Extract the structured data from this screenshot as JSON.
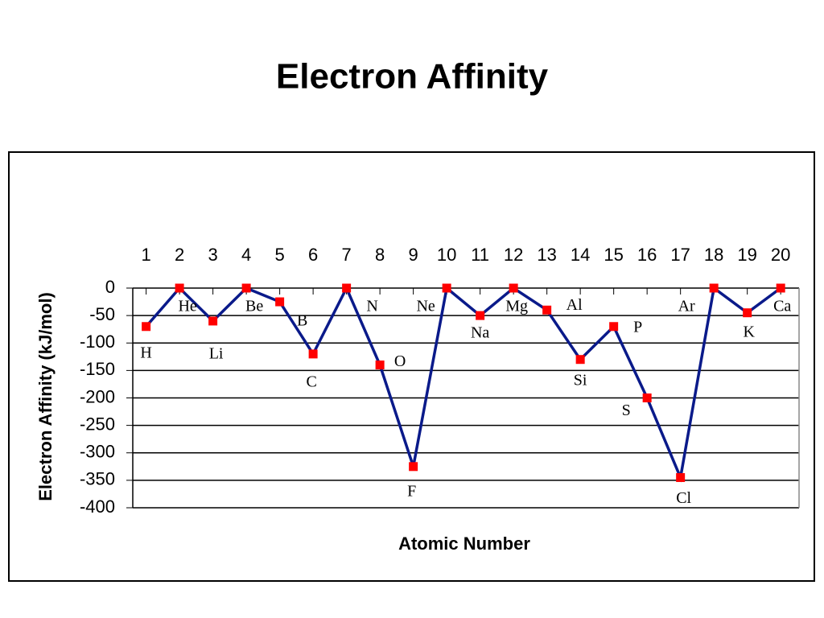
{
  "chart_data": {
    "type": "line",
    "title": "Electron Affinity",
    "x_label": "Atomic Number",
    "y_label": "Electron Affinity (kJ/mol)",
    "x": [
      1,
      2,
      3,
      4,
      5,
      6,
      7,
      8,
      9,
      10,
      11,
      12,
      13,
      14,
      15,
      16,
      17,
      18,
      19,
      20
    ],
    "point_labels": [
      "H",
      "He",
      "Li",
      "Be",
      "B",
      "C",
      "N",
      "O",
      "F",
      "Ne",
      "Na",
      "Mg",
      "Al",
      "Si",
      "P",
      "S",
      "Cl",
      "Ar",
      "K",
      "Ca"
    ],
    "series": [
      {
        "color": "#0a1a8a",
        "marker_color": "#ff0000",
        "values": [
          -70,
          0,
          -60,
          0,
          -25,
          -120,
          0,
          -140,
          -325,
          0,
          -50,
          0,
          -40,
          -130,
          -70,
          -200,
          -345,
          0,
          -45,
          0
        ]
      }
    ],
    "xlim": [
      0.6,
      20.55
    ],
    "ylim": [
      -400,
      0
    ],
    "xticks": [
      1,
      2,
      3,
      4,
      5,
      6,
      7,
      8,
      9,
      10,
      11,
      12,
      13,
      14,
      15,
      16,
      17,
      18,
      19,
      20
    ],
    "yticks": [
      0,
      -50,
      -100,
      -150,
      -200,
      -250,
      -300,
      -350,
      -400
    ],
    "grid": true
  }
}
